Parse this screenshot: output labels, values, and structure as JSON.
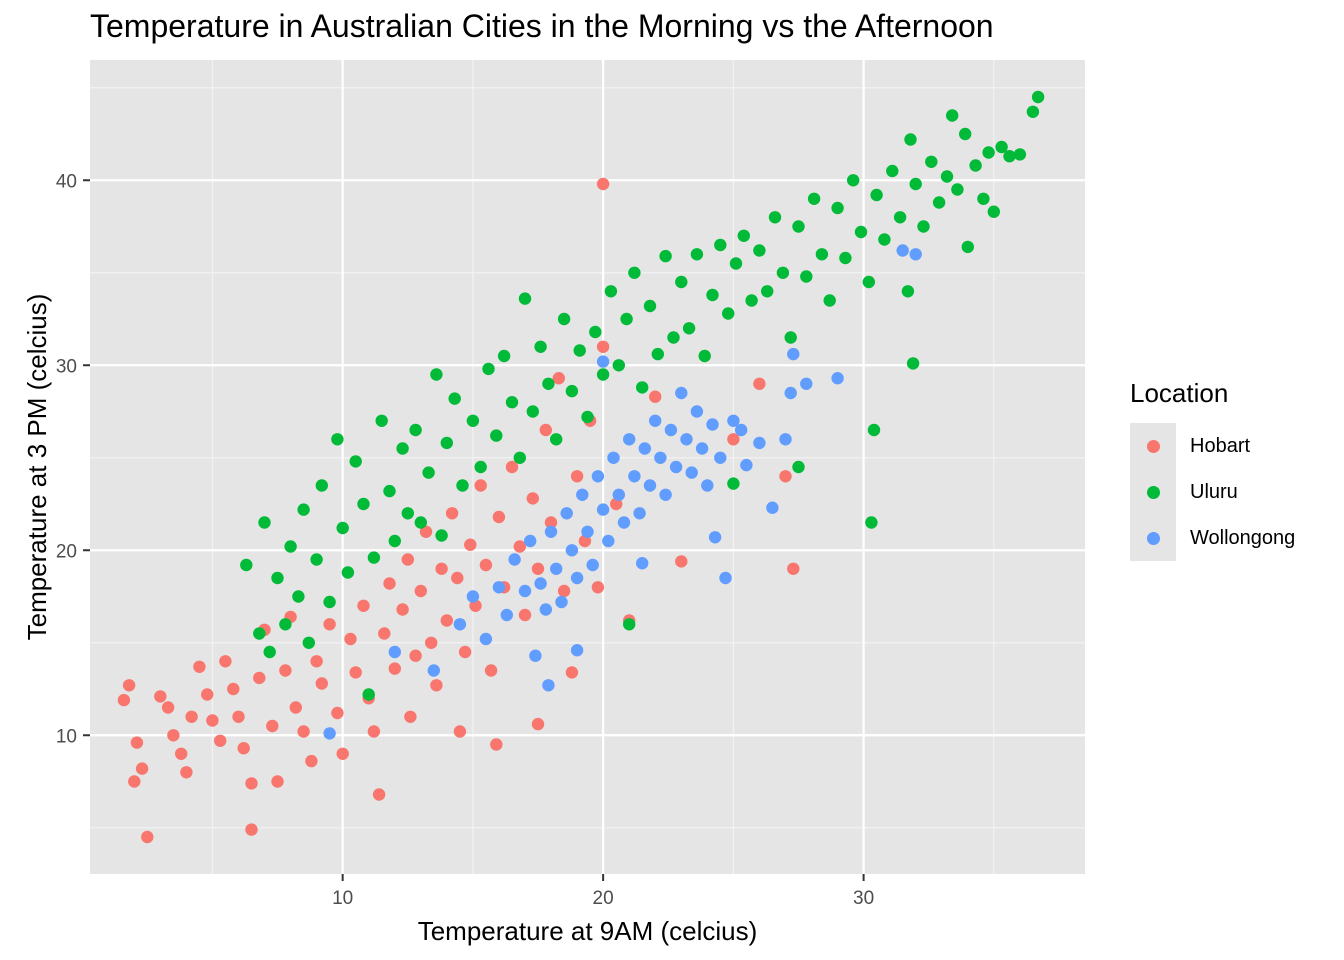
{
  "chart_data": {
    "type": "scatter",
    "title": "Temperature in Australian Cities in the Morning vs the Afternoon",
    "xlabel": "Temperature at 9AM (celcius)",
    "ylabel": "Temperature at 3 PM (celcius)",
    "xlim": [
      0.3,
      38.5
    ],
    "ylim": [
      2.5,
      46.5
    ],
    "x_ticks": [
      10,
      20,
      30
    ],
    "y_ticks": [
      10,
      20,
      30,
      40
    ],
    "grid": true,
    "legend_position": "right",
    "legend_title": "Location",
    "series": [
      {
        "name": "Hobart",
        "color": "#F8766D",
        "points": [
          [
            1.8,
            12.7
          ],
          [
            1.6,
            11.9
          ],
          [
            2.1,
            9.6
          ],
          [
            2.3,
            8.2
          ],
          [
            2.0,
            7.5
          ],
          [
            2.5,
            4.5
          ],
          [
            3.0,
            12.1
          ],
          [
            3.3,
            11.5
          ],
          [
            3.5,
            10.0
          ],
          [
            3.8,
            9.0
          ],
          [
            4.0,
            8.0
          ],
          [
            4.2,
            11.0
          ],
          [
            4.5,
            13.7
          ],
          [
            4.8,
            12.2
          ],
          [
            5.0,
            10.8
          ],
          [
            5.3,
            9.7
          ],
          [
            5.5,
            14.0
          ],
          [
            5.8,
            12.5
          ],
          [
            6.0,
            11.0
          ],
          [
            6.2,
            9.3
          ],
          [
            6.5,
            7.4
          ],
          [
            6.5,
            4.9
          ],
          [
            6.8,
            13.1
          ],
          [
            7.0,
            15.7
          ],
          [
            7.3,
            10.5
          ],
          [
            7.5,
            7.5
          ],
          [
            7.8,
            13.5
          ],
          [
            8.0,
            16.4
          ],
          [
            8.2,
            11.5
          ],
          [
            8.5,
            10.2
          ],
          [
            8.8,
            8.6
          ],
          [
            9.0,
            14.0
          ],
          [
            9.2,
            12.8
          ],
          [
            9.5,
            16.0
          ],
          [
            9.8,
            11.2
          ],
          [
            10.0,
            9.0
          ],
          [
            10.3,
            15.2
          ],
          [
            10.5,
            13.4
          ],
          [
            10.8,
            17.0
          ],
          [
            11.0,
            12.0
          ],
          [
            11.2,
            10.2
          ],
          [
            11.4,
            6.8
          ],
          [
            11.6,
            15.5
          ],
          [
            11.8,
            18.2
          ],
          [
            12.0,
            13.6
          ],
          [
            12.3,
            16.8
          ],
          [
            12.5,
            19.5
          ],
          [
            12.6,
            11.0
          ],
          [
            12.8,
            14.3
          ],
          [
            13.0,
            17.8
          ],
          [
            13.2,
            21.0
          ],
          [
            13.4,
            15.0
          ],
          [
            13.6,
            12.7
          ],
          [
            13.8,
            19.0
          ],
          [
            14.0,
            16.2
          ],
          [
            14.2,
            22.0
          ],
          [
            14.4,
            18.5
          ],
          [
            14.5,
            10.2
          ],
          [
            14.7,
            14.5
          ],
          [
            14.9,
            20.3
          ],
          [
            15.1,
            17.0
          ],
          [
            15.3,
            23.5
          ],
          [
            15.5,
            19.2
          ],
          [
            15.7,
            13.5
          ],
          [
            15.9,
            9.5
          ],
          [
            16.0,
            21.8
          ],
          [
            16.2,
            18.0
          ],
          [
            16.5,
            24.5
          ],
          [
            16.8,
            20.2
          ],
          [
            17.0,
            16.5
          ],
          [
            17.3,
            22.8
          ],
          [
            17.5,
            19.0
          ],
          [
            17.5,
            10.6
          ],
          [
            17.8,
            26.5
          ],
          [
            18.0,
            21.5
          ],
          [
            18.3,
            29.3
          ],
          [
            18.5,
            17.8
          ],
          [
            18.8,
            13.4
          ],
          [
            19.0,
            24.0
          ],
          [
            19.3,
            20.5
          ],
          [
            19.5,
            27.0
          ],
          [
            19.8,
            18.0
          ],
          [
            20.0,
            39.8
          ],
          [
            20.0,
            31.0
          ],
          [
            20.5,
            22.5
          ],
          [
            21.0,
            16.2
          ],
          [
            22.0,
            28.3
          ],
          [
            23.0,
            19.4
          ],
          [
            25.0,
            26.0
          ],
          [
            27.0,
            24.0
          ],
          [
            27.3,
            19.0
          ],
          [
            26.0,
            29.0
          ]
        ]
      },
      {
        "name": "Uluru",
        "color": "#00BA38",
        "points": [
          [
            6.3,
            19.2
          ],
          [
            6.8,
            15.5
          ],
          [
            7.0,
            21.5
          ],
          [
            7.2,
            14.5
          ],
          [
            7.5,
            18.5
          ],
          [
            7.8,
            16.0
          ],
          [
            8.0,
            20.2
          ],
          [
            8.3,
            17.5
          ],
          [
            8.5,
            22.2
          ],
          [
            8.7,
            15.0
          ],
          [
            9.0,
            19.5
          ],
          [
            9.2,
            23.5
          ],
          [
            9.5,
            17.2
          ],
          [
            9.8,
            26.0
          ],
          [
            10.0,
            21.2
          ],
          [
            10.2,
            18.8
          ],
          [
            10.5,
            24.8
          ],
          [
            10.8,
            22.5
          ],
          [
            11.0,
            12.2
          ],
          [
            11.2,
            19.6
          ],
          [
            11.5,
            27.0
          ],
          [
            11.8,
            23.2
          ],
          [
            12.0,
            20.5
          ],
          [
            12.3,
            25.5
          ],
          [
            12.5,
            22.0
          ],
          [
            12.8,
            26.5
          ],
          [
            13.0,
            21.5
          ],
          [
            13.3,
            24.2
          ],
          [
            13.6,
            29.5
          ],
          [
            13.8,
            20.8
          ],
          [
            14.0,
            25.8
          ],
          [
            14.3,
            28.2
          ],
          [
            14.6,
            23.5
          ],
          [
            15.0,
            27.0
          ],
          [
            15.3,
            24.5
          ],
          [
            15.6,
            29.8
          ],
          [
            15.9,
            26.2
          ],
          [
            16.2,
            30.5
          ],
          [
            16.5,
            28.0
          ],
          [
            16.8,
            25.0
          ],
          [
            17.0,
            33.6
          ],
          [
            17.3,
            27.5
          ],
          [
            17.6,
            31.0
          ],
          [
            17.9,
            29.0
          ],
          [
            18.2,
            26.0
          ],
          [
            18.5,
            32.5
          ],
          [
            18.8,
            28.6
          ],
          [
            19.1,
            30.8
          ],
          [
            19.4,
            27.2
          ],
          [
            19.7,
            31.8
          ],
          [
            20.0,
            29.5
          ],
          [
            20.3,
            34.0
          ],
          [
            20.6,
            30.0
          ],
          [
            20.9,
            32.5
          ],
          [
            21.0,
            16.0
          ],
          [
            21.2,
            35.0
          ],
          [
            21.5,
            28.8
          ],
          [
            21.8,
            33.2
          ],
          [
            22.1,
            30.6
          ],
          [
            22.4,
            35.9
          ],
          [
            22.7,
            31.5
          ],
          [
            23.0,
            34.5
          ],
          [
            23.3,
            32.0
          ],
          [
            23.6,
            36.0
          ],
          [
            23.9,
            30.5
          ],
          [
            24.2,
            33.8
          ],
          [
            24.5,
            36.5
          ],
          [
            24.8,
            32.8
          ],
          [
            25.1,
            35.5
          ],
          [
            25.0,
            23.6
          ],
          [
            25.4,
            37.0
          ],
          [
            25.7,
            33.5
          ],
          [
            26.0,
            36.2
          ],
          [
            26.3,
            34.0
          ],
          [
            26.6,
            38.0
          ],
          [
            26.9,
            35.0
          ],
          [
            27.2,
            31.5
          ],
          [
            27.5,
            24.5
          ],
          [
            27.5,
            37.5
          ],
          [
            27.8,
            34.8
          ],
          [
            28.1,
            39.0
          ],
          [
            28.4,
            36.0
          ],
          [
            28.7,
            33.5
          ],
          [
            29.0,
            38.5
          ],
          [
            29.3,
            35.8
          ],
          [
            29.6,
            40.0
          ],
          [
            29.9,
            37.2
          ],
          [
            30.2,
            34.5
          ],
          [
            30.3,
            21.5
          ],
          [
            30.4,
            26.5
          ],
          [
            30.5,
            39.2
          ],
          [
            30.8,
            36.8
          ],
          [
            31.1,
            40.5
          ],
          [
            31.4,
            38.0
          ],
          [
            31.7,
            34.0
          ],
          [
            31.8,
            42.2
          ],
          [
            31.9,
            30.1
          ],
          [
            32.0,
            39.8
          ],
          [
            32.3,
            37.5
          ],
          [
            32.6,
            41.0
          ],
          [
            32.9,
            38.8
          ],
          [
            33.2,
            40.2
          ],
          [
            33.4,
            43.5
          ],
          [
            33.6,
            39.5
          ],
          [
            33.9,
            42.5
          ],
          [
            34.0,
            36.4
          ],
          [
            34.3,
            40.8
          ],
          [
            34.6,
            39.0
          ],
          [
            34.8,
            41.5
          ],
          [
            35.0,
            38.3
          ],
          [
            35.3,
            41.8
          ],
          [
            35.6,
            41.3
          ],
          [
            36.0,
            41.4
          ],
          [
            36.5,
            43.7
          ],
          [
            36.7,
            44.5
          ]
        ]
      },
      {
        "name": "Wollongong",
        "color": "#619CFF",
        "points": [
          [
            9.5,
            10.1
          ],
          [
            12.0,
            14.5
          ],
          [
            13.5,
            13.5
          ],
          [
            14.5,
            16.0
          ],
          [
            15.0,
            17.5
          ],
          [
            15.5,
            15.2
          ],
          [
            16.0,
            18.0
          ],
          [
            16.3,
            16.5
          ],
          [
            16.6,
            19.5
          ],
          [
            17.0,
            17.8
          ],
          [
            17.2,
            20.5
          ],
          [
            17.4,
            14.3
          ],
          [
            17.6,
            18.2
          ],
          [
            17.8,
            16.8
          ],
          [
            17.9,
            12.7
          ],
          [
            18.0,
            21.0
          ],
          [
            18.2,
            19.0
          ],
          [
            18.4,
            17.2
          ],
          [
            18.6,
            22.0
          ],
          [
            18.8,
            20.0
          ],
          [
            19.0,
            18.5
          ],
          [
            19.0,
            14.6
          ],
          [
            19.2,
            23.0
          ],
          [
            19.4,
            21.0
          ],
          [
            19.6,
            19.2
          ],
          [
            19.8,
            24.0
          ],
          [
            20.0,
            22.2
          ],
          [
            20.0,
            30.2
          ],
          [
            20.2,
            20.5
          ],
          [
            20.4,
            25.0
          ],
          [
            20.6,
            23.0
          ],
          [
            20.8,
            21.5
          ],
          [
            21.0,
            26.0
          ],
          [
            21.2,
            24.0
          ],
          [
            21.4,
            22.0
          ],
          [
            21.5,
            19.3
          ],
          [
            21.6,
            25.5
          ],
          [
            21.8,
            23.5
          ],
          [
            22.0,
            27.0
          ],
          [
            22.2,
            25.0
          ],
          [
            22.4,
            23.0
          ],
          [
            22.6,
            26.5
          ],
          [
            22.8,
            24.5
          ],
          [
            23.0,
            28.5
          ],
          [
            23.2,
            26.0
          ],
          [
            23.4,
            24.2
          ],
          [
            23.6,
            27.5
          ],
          [
            23.8,
            25.5
          ],
          [
            24.0,
            23.5
          ],
          [
            24.2,
            26.8
          ],
          [
            24.3,
            20.7
          ],
          [
            24.5,
            25.0
          ],
          [
            24.7,
            18.5
          ],
          [
            25.0,
            27.0
          ],
          [
            25.3,
            26.5
          ],
          [
            25.5,
            24.6
          ],
          [
            26.0,
            25.8
          ],
          [
            26.5,
            22.3
          ],
          [
            27.0,
            26.0
          ],
          [
            27.2,
            28.5
          ],
          [
            27.3,
            30.6
          ],
          [
            27.8,
            29.0
          ],
          [
            29.0,
            29.3
          ],
          [
            31.5,
            36.2
          ],
          [
            32.0,
            36.0
          ]
        ]
      }
    ]
  }
}
